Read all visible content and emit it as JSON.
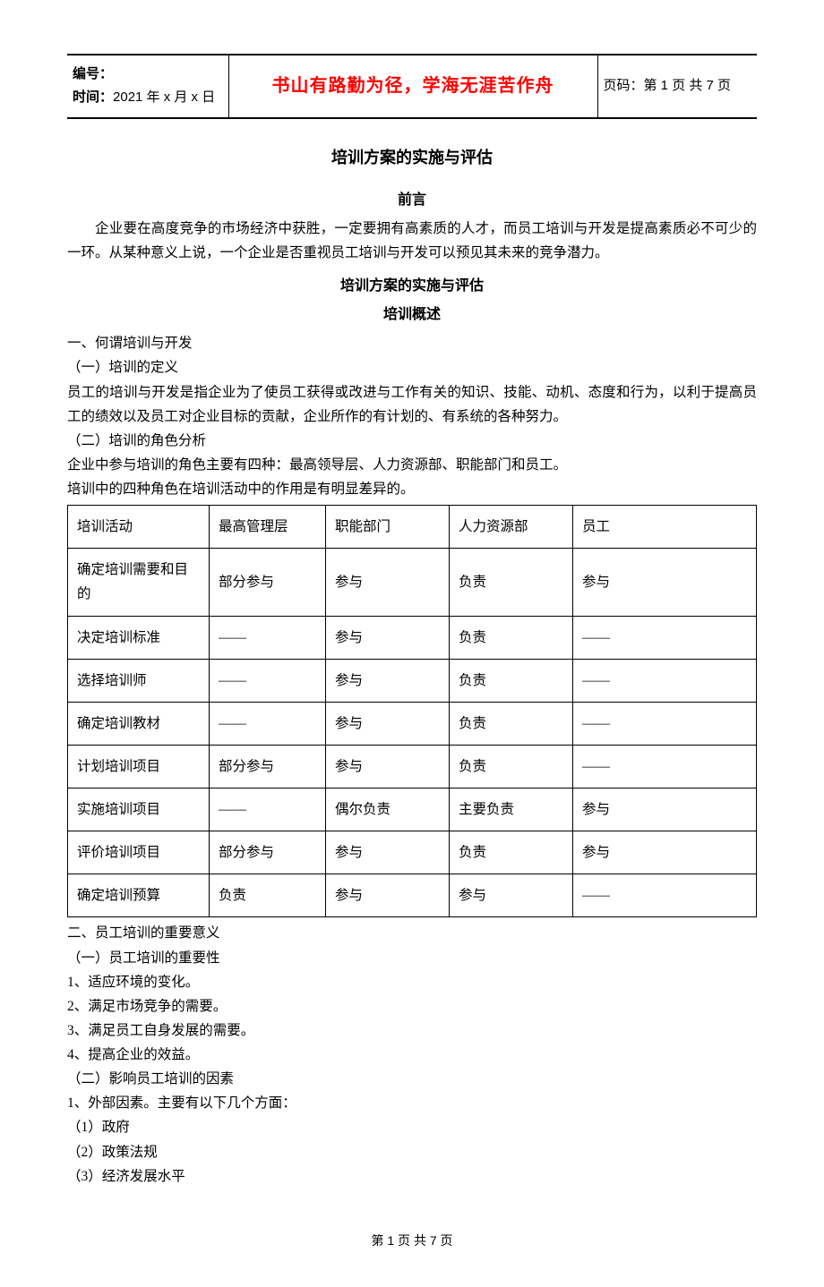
{
  "header": {
    "serial_label": "编号：",
    "time_label": "时间：",
    "time_value": "2021 年 x 月 x 日",
    "motto": "书山有路勤为径，学海无涯苦作舟",
    "page_label": "页码：",
    "page_value": "第 1 页  共 7 页"
  },
  "title": "培训方案的实施与评估",
  "preface_heading": "前言",
  "preface_text": "企业要在高度竞争的市场经济中获胜，一定要拥有高素质的人才，而员工培训与开发是提高素质必不可少的一环。从某种意义上说，一个企业是否重视员工培训与开发可以预见其未来的竞争潜力。",
  "subtitle1": "培训方案的实施与评估",
  "subtitle2": "培训概述",
  "sec1_heading": "一、何谓培训与开发",
  "sec1_1": "（一）培训的定义",
  "sec1_1_text": "员工的培训与开发是指企业为了使员工获得或改进与工作有关的知识、技能、动机、态度和行为，以利于提高员工的绩效以及员工对企业目标的贡献，企业所作的有计划的、有系统的各种努力。",
  "sec1_2": "（二）培训的角色分析",
  "sec1_2_line1": "企业中参与培训的角色主要有四种：最高领导层、人力资源部、职能部门和员工。",
  "sec1_2_line2": "培训中的四种角色在培训活动中的作用是有明显差异的。",
  "table": {
    "columns": [
      "培训活动",
      "最高管理层",
      "职能部门",
      "人力资源部",
      "员工"
    ],
    "rows": [
      [
        "确定培训需要和目的",
        "部分参与",
        "参与",
        "负责",
        "参与"
      ],
      [
        "决定培训标准",
        "——",
        "参与",
        "负责",
        "——"
      ],
      [
        "选择培训师",
        "——",
        "参与",
        "负责",
        "——"
      ],
      [
        "确定培训教材",
        "——",
        "参与",
        "负责",
        "——"
      ],
      [
        "计划培训项目",
        "部分参与",
        "参与",
        "负责",
        "——"
      ],
      [
        "实施培训项目",
        "——",
        "偶尔负责",
        "主要负责",
        "参与"
      ],
      [
        "评价培训项目",
        "部分参与",
        "参与",
        "负责",
        "参与"
      ],
      [
        "确定培训预算",
        "负责",
        "参与",
        "参与",
        "——"
      ]
    ]
  },
  "sec2_heading": "二、员工培训的重要意义",
  "sec2_1": "（一）员工培训的重要性",
  "sec2_items1": [
    "1、适应环境的变化。",
    "2、满足市场竞争的需要。",
    "3、满足员工自身发展的需要。",
    "4、提高企业的效益。"
  ],
  "sec2_2": "（二）影响员工培训的因素",
  "sec2_2_intro": "1、外部因素。主要有以下几个方面：",
  "sec2_items2": [
    "（1）政府",
    "（2）政策法规",
    "（3）经济发展水平"
  ],
  "footer": "第  1  页  共  7  页"
}
